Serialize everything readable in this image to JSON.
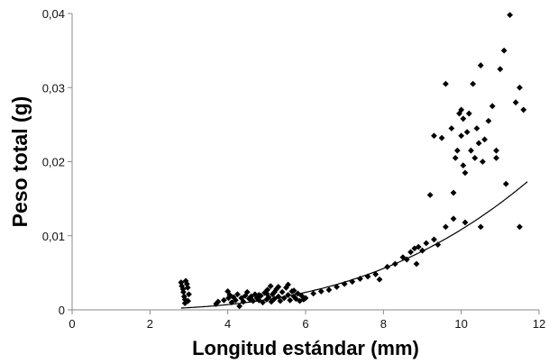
{
  "chart_data": {
    "type": "scatter",
    "xlabel": "Longitud estándar (mm)",
    "ylabel": "Peso total (g)",
    "xlim": [
      0,
      12
    ],
    "ylim": [
      0,
      0.04
    ],
    "x_ticks": [
      0,
      2,
      4,
      6,
      8,
      10,
      12
    ],
    "x_tick_labels": [
      "0",
      "2",
      "4",
      "6",
      "8",
      "10",
      "12"
    ],
    "y_ticks": [
      0,
      0.01,
      0.02,
      0.03,
      0.04
    ],
    "y_tick_labels": [
      "0",
      "0,01",
      "0,02",
      "0,03",
      "0,04"
    ],
    "grid": false,
    "marker": "diamond",
    "points": [
      [
        2.8,
        0.0037
      ],
      [
        2.82,
        0.0032
      ],
      [
        2.85,
        0.0028
      ],
      [
        2.86,
        0.0024
      ],
      [
        2.88,
        0.0018
      ],
      [
        2.9,
        0.0014
      ],
      [
        2.92,
        0.0039
      ],
      [
        2.95,
        0.0035
      ],
      [
        2.97,
        0.003
      ],
      [
        3.0,
        0.0021
      ],
      [
        2.98,
        0.0012
      ],
      [
        2.9,
        0.0009
      ],
      [
        3.7,
        0.0008
      ],
      [
        3.75,
        0.0011
      ],
      [
        3.9,
        0.0013
      ],
      [
        4.0,
        0.0025
      ],
      [
        4.02,
        0.0016
      ],
      [
        4.05,
        0.002
      ],
      [
        4.1,
        0.001
      ],
      [
        4.15,
        0.0017
      ],
      [
        4.2,
        0.0013
      ],
      [
        4.25,
        0.0021
      ],
      [
        4.3,
        0.0005
      ],
      [
        4.35,
        0.0016
      ],
      [
        4.4,
        0.0011
      ],
      [
        4.45,
        0.0019
      ],
      [
        4.5,
        0.0024
      ],
      [
        4.55,
        0.0015
      ],
      [
        4.6,
        0.0018
      ],
      [
        4.65,
        0.0012
      ],
      [
        4.7,
        0.0021
      ],
      [
        4.75,
        0.0016
      ],
      [
        4.8,
        0.0013
      ],
      [
        4.85,
        0.0019
      ],
      [
        4.9,
        0.001
      ],
      [
        4.95,
        0.0023
      ],
      [
        5.0,
        0.0014
      ],
      [
        5.02,
        0.0027
      ],
      [
        5.05,
        0.0017
      ],
      [
        5.1,
        0.0032
      ],
      [
        5.12,
        0.0011
      ],
      [
        5.15,
        0.0021
      ],
      [
        5.2,
        0.0015
      ],
      [
        5.25,
        0.0028
      ],
      [
        5.3,
        0.0018
      ],
      [
        5.35,
        0.0012
      ],
      [
        5.4,
        0.0024
      ],
      [
        5.45,
        0.0016
      ],
      [
        5.5,
        0.003
      ],
      [
        5.55,
        0.002
      ],
      [
        5.6,
        0.0013
      ],
      [
        5.65,
        0.0025
      ],
      [
        5.7,
        0.0018
      ],
      [
        5.75,
        0.0015
      ],
      [
        5.8,
        0.0022
      ],
      [
        5.85,
        0.0012
      ],
      [
        5.9,
        0.0019
      ],
      [
        5.95,
        0.0014
      ],
      [
        6.0,
        0.0016
      ],
      [
        5.55,
        0.0034
      ],
      [
        5.3,
        0.0031
      ],
      [
        5.0,
        0.0022
      ],
      [
        4.6,
        0.0014
      ],
      [
        5.7,
        0.0026
      ],
      [
        5.2,
        0.0024
      ],
      [
        4.8,
        0.002
      ],
      [
        6.2,
        0.0022
      ],
      [
        6.4,
        0.0025
      ],
      [
        6.6,
        0.0027
      ],
      [
        6.8,
        0.0031
      ],
      [
        7.0,
        0.0035
      ],
      [
        7.2,
        0.0038
      ],
      [
        7.4,
        0.0042
      ],
      [
        7.6,
        0.0045
      ],
      [
        7.8,
        0.0048
      ],
      [
        7.9,
        0.0041
      ],
      [
        8.1,
        0.0058
      ],
      [
        8.3,
        0.0062
      ],
      [
        8.5,
        0.0071
      ],
      [
        8.6,
        0.0068
      ],
      [
        8.7,
        0.0078
      ],
      [
        8.8,
        0.0083
      ],
      [
        8.85,
        0.0062
      ],
      [
        8.9,
        0.0085
      ],
      [
        9.0,
        0.008
      ],
      [
        9.1,
        0.009
      ],
      [
        9.3,
        0.0095
      ],
      [
        9.4,
        0.0088
      ],
      [
        9.6,
        0.0112
      ],
      [
        9.8,
        0.0123
      ],
      [
        10.1,
        0.0118
      ],
      [
        10.5,
        0.0112
      ],
      [
        11.5,
        0.0112
      ],
      [
        9.2,
        0.0155
      ],
      [
        9.3,
        0.0235
      ],
      [
        9.5,
        0.0232
      ],
      [
        9.6,
        0.0305
      ],
      [
        9.75,
        0.0245
      ],
      [
        9.8,
        0.0158
      ],
      [
        9.85,
        0.0205
      ],
      [
        9.9,
        0.0215
      ],
      [
        9.95,
        0.0265
      ],
      [
        10.0,
        0.0235
      ],
      [
        10.05,
        0.0258
      ],
      [
        10.05,
        0.0195
      ],
      [
        10.1,
        0.0185
      ],
      [
        10.15,
        0.024
      ],
      [
        10.2,
        0.0265
      ],
      [
        10.25,
        0.0215
      ],
      [
        10.3,
        0.0305
      ],
      [
        10.35,
        0.0205
      ],
      [
        10.4,
        0.0245
      ],
      [
        10.45,
        0.0225
      ],
      [
        10.5,
        0.033
      ],
      [
        10.55,
        0.02
      ],
      [
        10.6,
        0.023
      ],
      [
        10.7,
        0.0255
      ],
      [
        10.8,
        0.0275
      ],
      [
        10.9,
        0.0215
      ],
      [
        11.0,
        0.0325
      ],
      [
        11.1,
        0.035
      ],
      [
        11.15,
        0.017
      ],
      [
        11.25,
        0.0398
      ],
      [
        11.4,
        0.028
      ],
      [
        11.5,
        0.03
      ],
      [
        11.6,
        0.027
      ],
      [
        10.0,
        0.027
      ],
      [
        10.9,
        0.0205
      ]
    ],
    "fit_curve": {
      "type": "power",
      "a": 1.135e-05,
      "b": 2.98,
      "x_range": [
        2.8,
        11.7
      ]
    }
  }
}
